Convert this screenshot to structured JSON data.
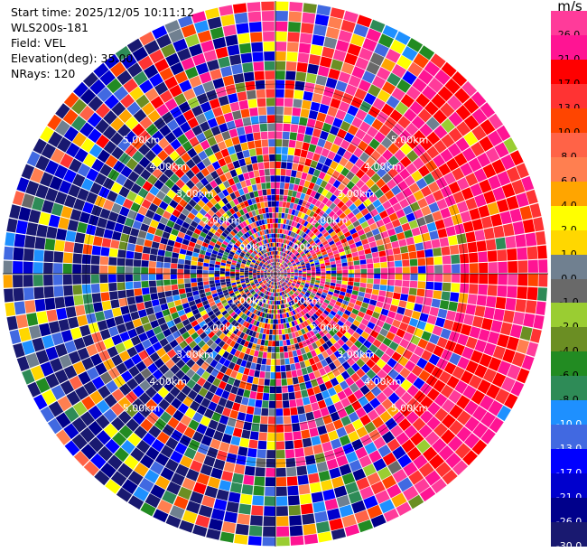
{
  "info": {
    "start_time": "Start time: 2025/12/05 10:11:12",
    "instrument": "WLS200s-181",
    "field": "Field: VEL",
    "elevation": "Elevation(deg): 35.00",
    "nrays": "NRays: 120"
  },
  "chart_data": {
    "type": "heatmap",
    "subtype": "polar-ppi",
    "field": "VEL",
    "unit": "m/s",
    "n_rays": 120,
    "range_ring_labels": [
      "1.00km",
      "2.00km",
      "3.00km",
      "4.00km",
      "5.00km"
    ],
    "range_rings_km": [
      1,
      2,
      3,
      4,
      5
    ],
    "colorbar": {
      "unit": "m/s",
      "tick_labels": [
        "26.0",
        "21.0",
        "17.0",
        "13.0",
        "10.0",
        "8.0",
        "6.0",
        "4.0",
        "2.0",
        "1.0",
        "0.0",
        "-1.0",
        "-2.0",
        "-4.0",
        "-6.0",
        "-8.0",
        "-10.0",
        "-13.0",
        "-17.0",
        "-21.0",
        "-26.0",
        "-30.0"
      ],
      "colors": [
        "#ff3b9a",
        "#ff1493",
        "#ff0000",
        "#ff3333",
        "#ff4500",
        "#ff6347",
        "#ff7f50",
        "#ffa500",
        "#ffff00",
        "#ffd700",
        "#708090",
        "#696969",
        "#9acd32",
        "#6b8e23",
        "#228b22",
        "#2e8b57",
        "#1e90ff",
        "#4169e1",
        "#0000ff",
        "#0000cd",
        "#00008b",
        "#191970"
      ]
    },
    "colorbar_boundaries": [
      30,
      26,
      21,
      17,
      13,
      10,
      8,
      6,
      4,
      2,
      1,
      0,
      -1,
      -2,
      -4,
      -6,
      -8,
      -10,
      -13,
      -17,
      -21,
      -26,
      -30
    ]
  }
}
